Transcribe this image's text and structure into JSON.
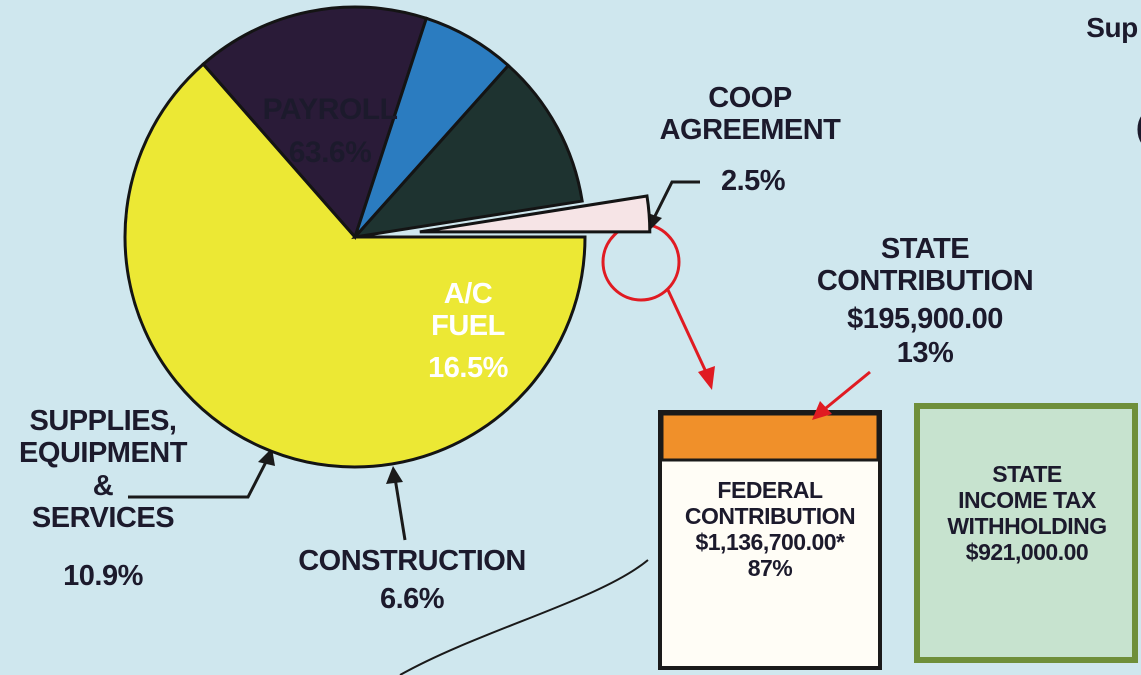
{
  "chart_data": {
    "type": "pie",
    "categories": [
      "PAYROLL",
      "A/C\nFUEL",
      "CONSTRUCTION",
      "SUPPLIES,\nEQUIPMENT\n&\nSERVICES",
      "COOP\nAGREEMENT"
    ],
    "values": [
      63.6,
      16.5,
      6.6,
      10.9,
      2.5
    ],
    "value_labels": [
      "63.6%",
      "16.5%",
      "6.6%",
      "10.9%",
      "2.5%"
    ],
    "colors": [
      "#ece834",
      "#2a1b38",
      "#2b7cc0",
      "#1e3330",
      "#f6e4e6"
    ],
    "exploded": [
      false,
      false,
      false,
      false,
      true
    ]
  },
  "heading": "Sup",
  "heading_fragment": "(",
  "state_contribution": {
    "label": "STATE\nCONTRIBUTION",
    "amount": "$195,900.00",
    "share": "13%"
  },
  "federal_contribution": {
    "label": "FEDERAL\nCONTRIBUTION",
    "amount": "$1,136,700.00*",
    "share": "87%"
  },
  "state_income_tax": {
    "label": "STATE\nINCOME TAX\nWITHHOLDING",
    "amount": "$921,000.00"
  }
}
